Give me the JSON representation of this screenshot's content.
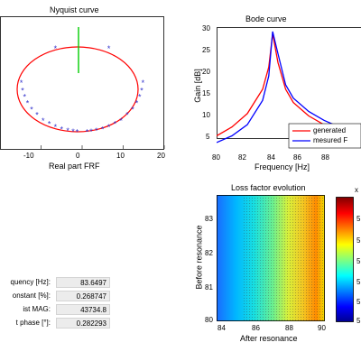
{
  "nyquist": {
    "title": "Nyquist curve",
    "xlabel": "Real part FRF",
    "xticks": [
      "-10",
      "0",
      "10",
      "20"
    ]
  },
  "bode": {
    "title": "Bode curve",
    "xlabel": "Frequency  [Hz]",
    "ylabel": "Gain [dB]",
    "xticks": [
      "80",
      "82",
      "84",
      "86",
      "88"
    ],
    "yticks": [
      "5",
      "10",
      "15",
      "20",
      "25",
      "30"
    ],
    "legend": [
      "generated",
      "mesured F"
    ],
    "colors": {
      "generated": "#ff0000",
      "measured": "#0000ff"
    }
  },
  "loss": {
    "title": "Loss factor evolution",
    "xlabel": "After resonance",
    "ylabel": "Before resonance",
    "xticks": [
      "84",
      "86",
      "88",
      "90"
    ],
    "yticks": [
      "83",
      "82",
      "81",
      "80"
    ],
    "colorbar_multiplier": "x",
    "colorbar_ticks": [
      "5",
      "5",
      "5",
      "5",
      "5",
      "5"
    ]
  },
  "results": {
    "rows": [
      {
        "label": "quency [Hz]:",
        "value": "83.6497"
      },
      {
        "label": "onstant [%]:",
        "value": "0.268747"
      },
      {
        "label": "ist MAG:",
        "value": "43734.8"
      },
      {
        "label": "t phase [°]:",
        "value": "0.282293"
      }
    ]
  },
  "chart_data": [
    {
      "type": "scatter",
      "title": "Nyquist curve",
      "xlabel": "Real part FRF",
      "xlim": [
        -20,
        20
      ],
      "series": [
        {
          "name": "",
          "x": [
            -14.8,
            -14.5,
            -14,
            -13.3,
            -12.3,
            -11,
            -9.5,
            -8,
            -6.5,
            -5,
            -3.5,
            -2.2,
            -1.2,
            1.2,
            2.2,
            3.5,
            5,
            6.5,
            8,
            9.5,
            11,
            12.3,
            13.3,
            14,
            14.5,
            14.8,
            -6.5,
            6.5
          ],
          "y": [
            0.4,
            -0.1,
            -0.5,
            -0.9,
            -1.3,
            -1.65,
            -2,
            -2.2,
            -2.4,
            -2.55,
            -2.65,
            -2.7,
            -2.72,
            -2.72,
            -2.7,
            -2.65,
            -2.55,
            -2.4,
            -2.2,
            -2,
            -1.65,
            -1.3,
            -0.9,
            -0.5,
            -0.1,
            0.4,
            2.6,
            2.6
          ]
        }
      ]
    },
    {
      "type": "line",
      "title": "Bode curve",
      "xlabel": "Frequency  [Hz]",
      "ylabel": "Gain [dB]",
      "xlim": [
        80,
        90
      ],
      "ylim": [
        5,
        30
      ],
      "series": [
        {
          "name": "generated",
          "x": [
            80,
            81,
            82,
            83,
            83.4,
            83.65,
            84,
            84.5,
            85,
            86,
            87,
            88,
            89
          ],
          "y": [
            5.5,
            7.5,
            10.5,
            16,
            21,
            28.5,
            22,
            16,
            13,
            10,
            8,
            6.5,
            5.5
          ]
        },
        {
          "name": "mesured F",
          "x": [
            80,
            81,
            82,
            83,
            83.4,
            83.65,
            84,
            84.5,
            85,
            86,
            87,
            88,
            89
          ],
          "y": [
            4,
            5.5,
            8,
            13.5,
            19,
            29,
            24,
            17,
            14,
            11,
            9,
            7.5,
            6.5
          ]
        }
      ]
    },
    {
      "type": "heatmap",
      "title": "Loss factor evolution",
      "xlabel": "After resonance",
      "ylabel": "Before resonance",
      "xlim": [
        84,
        90
      ],
      "ylim": [
        80,
        83.5
      ],
      "gradient_x": [
        84,
        85,
        86,
        87,
        88,
        89,
        90
      ],
      "gradient_level": [
        0.2,
        0.35,
        0.5,
        0.6,
        0.7,
        0.85,
        1.0
      ]
    }
  ]
}
